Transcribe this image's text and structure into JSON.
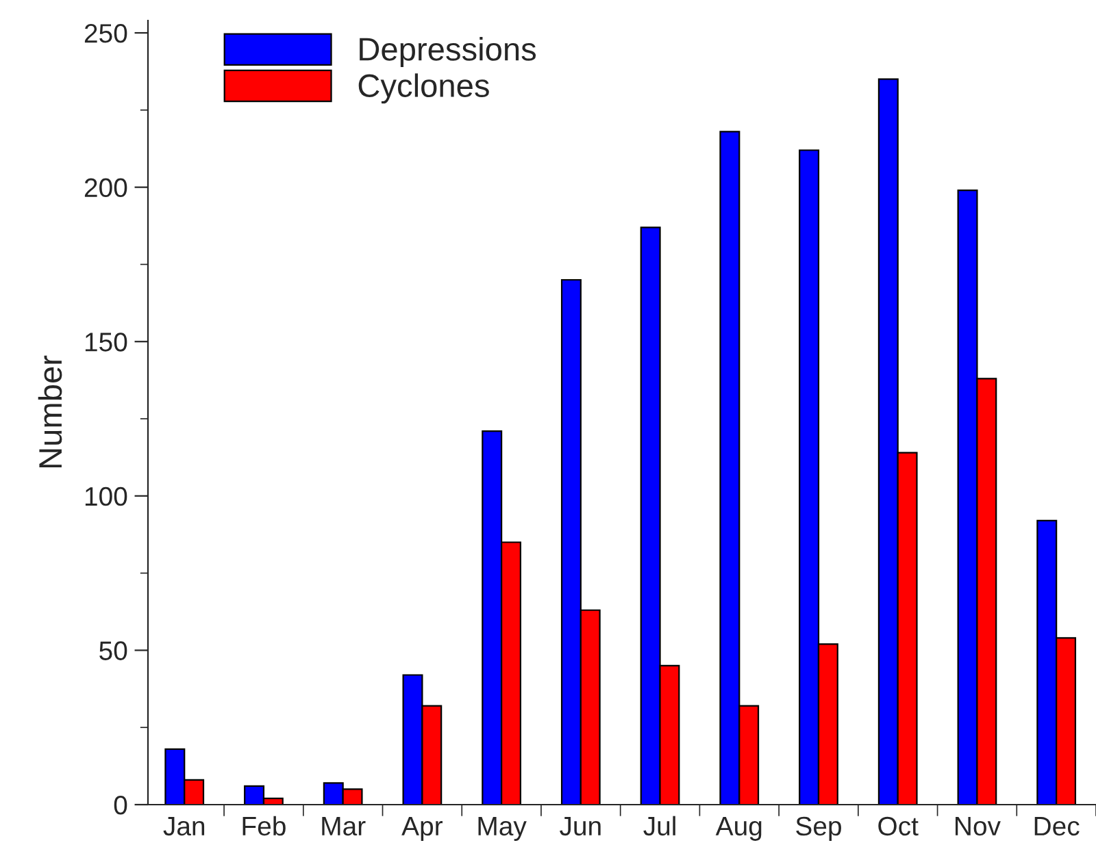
{
  "chart_data": {
    "type": "bar",
    "ylabel": "Number",
    "categories": [
      "Jan",
      "Feb",
      "Mar",
      "Apr",
      "May",
      "Jun",
      "Jul",
      "Aug",
      "Sep",
      "Oct",
      "Nov",
      "Dec"
    ],
    "series": [
      {
        "name": "Depressions",
        "color": "#0000ff",
        "values": [
          18,
          6,
          7,
          42,
          121,
          170,
          187,
          218,
          212,
          235,
          199,
          92
        ]
      },
      {
        "name": "Cyclones",
        "color": "#ff0000",
        "values": [
          8,
          2,
          5,
          32,
          85,
          63,
          45,
          32,
          52,
          114,
          138,
          54
        ]
      }
    ],
    "ylim": [
      0,
      254
    ],
    "yticks": [
      0,
      50,
      100,
      150,
      200,
      250
    ],
    "grid": false,
    "legend": "top left"
  }
}
